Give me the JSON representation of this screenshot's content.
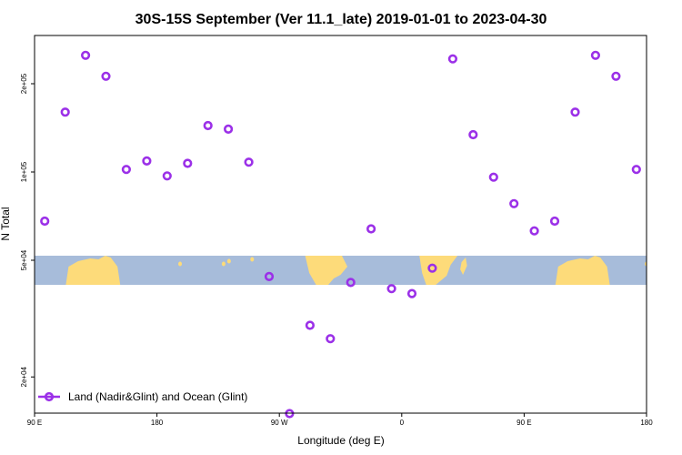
{
  "chart_data": {
    "type": "scatter",
    "title": "30S-15S September (Ver 11.1_late)   2019-01-01 to 2023-04-30",
    "xlabel": "Longitude (deg E)",
    "ylabel": "N Total",
    "x_ticks": [
      "90 E",
      "180",
      "90 W",
      "0",
      "90 E",
      "180"
    ],
    "y_ticks": [
      "2e+04",
      "5e+04",
      "1e+05",
      "2e+05"
    ],
    "y_scale": "log",
    "ylim": [
      13500,
      300000
    ],
    "x_domain_deg": [
      90,
      540
    ],
    "x_tick_positions_deg": [
      90,
      180,
      270,
      360,
      450,
      540
    ],
    "y_tick_values": [
      20000,
      50000,
      100000,
      200000
    ],
    "map_band_lat": [
      "30S",
      "15S"
    ],
    "colors": {
      "point": "#9b30e8",
      "ocean": "#a7bcda",
      "land": "#fddb7a"
    },
    "series": [
      {
        "name": "Land (Nadir&Glint) and Ocean (Glint)",
        "x": [
          97.5,
          112.5,
          127.5,
          142.5,
          157.5,
          172.5,
          187.5,
          202.5,
          217.5,
          232.5,
          247.5,
          262.5,
          277.5,
          292.5,
          307.5,
          322.5,
          337.5,
          352.5,
          367.5,
          382.5,
          397.5,
          412.5,
          427.5,
          442.5,
          457.5,
          472.5,
          487.5,
          502.5,
          517.5,
          532.5
        ],
        "y": [
          68000,
          160000,
          250000,
          212000,
          102000,
          109000,
          97000,
          107000,
          144000,
          140000,
          108000,
          44000,
          15000,
          30000,
          27000,
          42000,
          64000,
          40000,
          38500,
          47000,
          243000,
          134000,
          96000,
          78000,
          63000,
          68000,
          160000,
          250000,
          212000,
          102000
        ]
      }
    ],
    "legend": {
      "position": "bottom-left",
      "entries": [
        "Land (Nadir&Glint) and Ocean (Glint)"
      ]
    }
  }
}
